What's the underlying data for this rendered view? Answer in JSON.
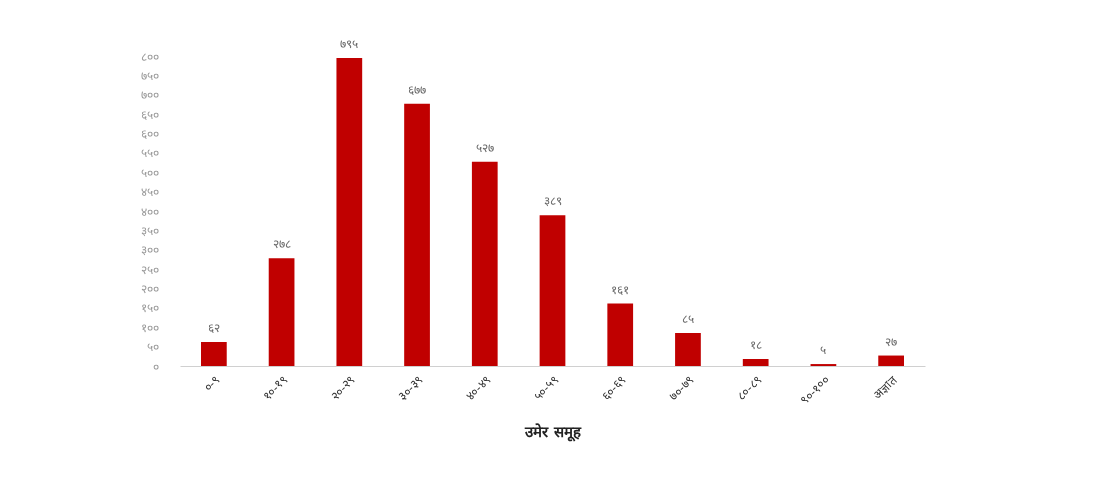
{
  "chart_data": {
    "type": "bar",
    "xlabel": "उमेर समूह",
    "categories": [
      "०-९",
      "१०-१९",
      "२०-२९",
      "३०-३९",
      "४०-४९",
      "५०-५९",
      "६०-६९",
      "७०-७९",
      "८०-८९",
      "९०-१००",
      "अज्ञात"
    ],
    "values": [
      62,
      278,
      795,
      677,
      527,
      389,
      161,
      85,
      18,
      5,
      27
    ],
    "value_labels": [
      "६२",
      "२७८",
      "७९५",
      "६७७",
      "५२७",
      "३८९",
      "१६१",
      "८५",
      "१८",
      "५",
      "२७"
    ],
    "color": "#c00000",
    "ylim": [
      0,
      800
    ],
    "yticks": [
      {
        "value": 0,
        "label": "०"
      },
      {
        "value": 50,
        "label": "५०"
      },
      {
        "value": 100,
        "label": "१००"
      },
      {
        "value": 150,
        "label": "१५०"
      },
      {
        "value": 200,
        "label": "२००"
      },
      {
        "value": 250,
        "label": "२५०"
      },
      {
        "value": 300,
        "label": "३००"
      },
      {
        "value": 350,
        "label": "३५०"
      },
      {
        "value": 400,
        "label": "४००"
      },
      {
        "value": 450,
        "label": "४५०"
      },
      {
        "value": 500,
        "label": "५००"
      },
      {
        "value": 550,
        "label": "५५०"
      },
      {
        "value": 600,
        "label": "६००"
      },
      {
        "value": 650,
        "label": "६५०"
      },
      {
        "value": 700,
        "label": "७००"
      },
      {
        "value": 750,
        "label": "७५०"
      },
      {
        "value": 800,
        "label": "८००"
      }
    ],
    "grid": false
  }
}
